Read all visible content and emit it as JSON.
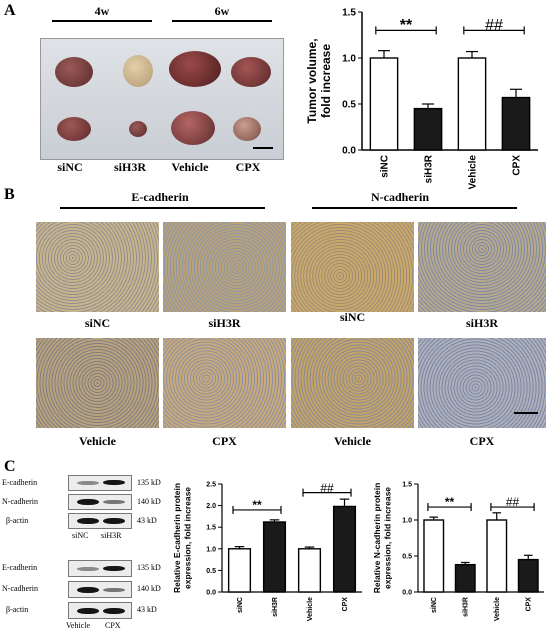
{
  "panel_a": {
    "letter": "A",
    "groups": [
      "4w",
      "6w"
    ],
    "tumor_labels": [
      "siNC",
      "siH3R",
      "Vehicle",
      "CPX"
    ]
  },
  "panel_b": {
    "letter": "B",
    "markers": [
      "E-cadherin",
      "N-cadherin"
    ],
    "row1_labels": [
      "siNC",
      "siH3R",
      "siNC",
      "siH3R"
    ],
    "row2_labels": [
      "Vehicle",
      "CPX",
      "Vehicle",
      "CPX"
    ]
  },
  "panel_c": {
    "letter": "C",
    "blot1": {
      "rows": [
        "E-cadherin",
        "N-cadherin",
        "β-actin"
      ],
      "sizes": [
        "135 kD",
        "140 kD",
        "43 kD"
      ],
      "lanes": [
        "siNC",
        "siH3R"
      ]
    },
    "blot2": {
      "rows": [
        "E-cadherin",
        "N-cadherin",
        "β-actin"
      ],
      "sizes": [
        "135 kD",
        "140 kD",
        "43 kD"
      ],
      "lanes": [
        "Vehicle",
        "CPX"
      ]
    }
  },
  "chart_data": [
    {
      "type": "bar",
      "panel": "A",
      "categories": [
        "siNC",
        "siH3R",
        "Vehicle",
        "CPX"
      ],
      "values": [
        1.0,
        0.45,
        1.0,
        0.57
      ],
      "errors": [
        0.08,
        0.05,
        0.07,
        0.09
      ],
      "fills": [
        "#ffffff",
        "#1a1a1a",
        "#ffffff",
        "#1a1a1a"
      ],
      "ylabel": "Tumor volume, fold increase",
      "ylim": [
        0,
        1.5
      ],
      "yticks": [
        "0.0",
        "0.5",
        "1.0",
        "1.5"
      ],
      "yticks_values": [
        0,
        0.5,
        1.0,
        1.5
      ],
      "annotations": [
        {
          "text": "**",
          "between": [
            0,
            1
          ],
          "level": 1.3
        },
        {
          "text": "##",
          "between": [
            2,
            3
          ],
          "level": 1.3
        }
      ]
    },
    {
      "type": "bar",
      "panel": "C",
      "categories": [
        "siNC",
        "siH3R",
        "Vehicle",
        "CPX"
      ],
      "values": [
        1.0,
        1.62,
        1.0,
        1.98
      ],
      "errors": [
        0.05,
        0.05,
        0.04,
        0.17
      ],
      "fills": [
        "#ffffff",
        "#1a1a1a",
        "#ffffff",
        "#1a1a1a"
      ],
      "ylabel": "Relative E-cadherin protein expression, fold increase",
      "ylim": [
        0,
        2.5
      ],
      "yticks": [
        "0.0",
        "0.5",
        "1.0",
        "1.5",
        "2.0",
        "2.5"
      ],
      "yticks_values": [
        0,
        0.5,
        1.0,
        1.5,
        2.0,
        2.5
      ],
      "annotations": [
        {
          "text": "**",
          "between": [
            0,
            1
          ],
          "level": 1.9
        },
        {
          "text": "##",
          "between": [
            2,
            3
          ],
          "level": 2.3
        }
      ]
    },
    {
      "type": "bar",
      "panel": "C",
      "categories": [
        "siNC",
        "siH3R",
        "Vehicle",
        "CPX"
      ],
      "values": [
        1.0,
        0.38,
        1.0,
        0.45
      ],
      "errors": [
        0.04,
        0.03,
        0.1,
        0.06
      ],
      "fills": [
        "#ffffff",
        "#1a1a1a",
        "#ffffff",
        "#1a1a1a"
      ],
      "ylabel": "Relative N-cadherin protein expression, fold increase",
      "ylim": [
        0,
        1.5
      ],
      "yticks": [
        "0.0",
        "0.5",
        "1.0",
        "1.5"
      ],
      "yticks_values": [
        0,
        0.5,
        1.0,
        1.5
      ],
      "annotations": [
        {
          "text": "**",
          "between": [
            0,
            1
          ],
          "level": 1.18
        },
        {
          "text": "##",
          "between": [
            2,
            3
          ],
          "level": 1.18
        }
      ]
    }
  ]
}
